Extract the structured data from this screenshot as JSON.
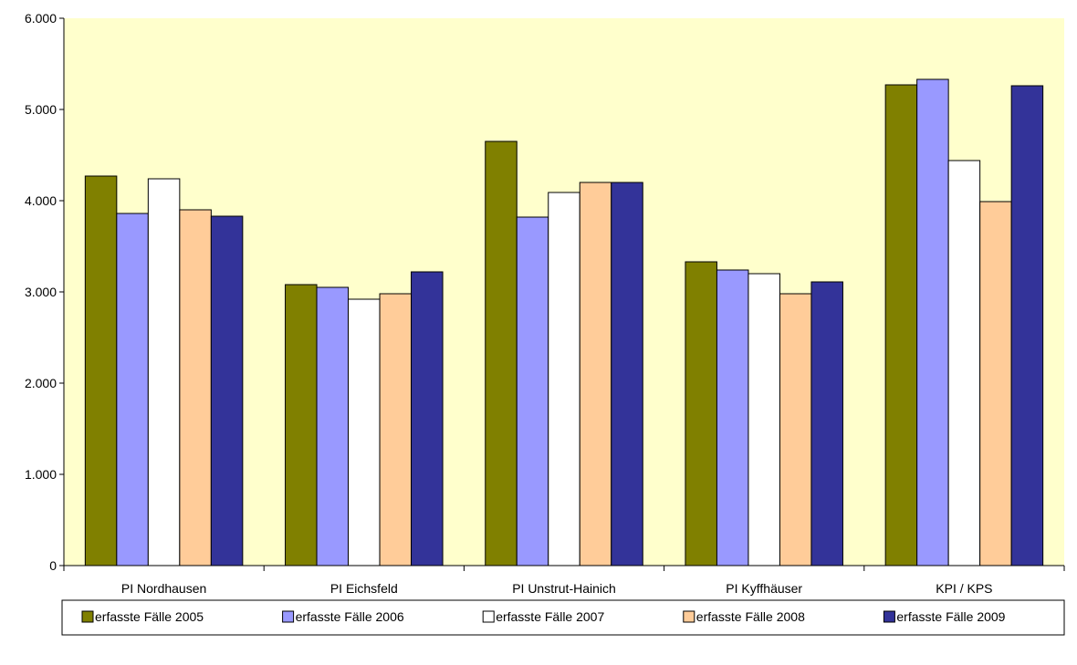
{
  "chart_data": {
    "type": "bar",
    "title": "",
    "xlabel": "",
    "ylabel": "",
    "categories": [
      "PI Nordhausen",
      "PI Eichsfeld",
      "PI Unstrut-Hainich",
      "PI Kyffhäuser",
      "KPI / KPS"
    ],
    "ylim": [
      0,
      6000
    ],
    "yticks": [
      0,
      1000,
      2000,
      3000,
      4000,
      5000,
      6000
    ],
    "ytick_labels": [
      "0",
      "1.000",
      "2.000",
      "3.000",
      "4.000",
      "5.000",
      "6.000"
    ],
    "grid": false,
    "legend_position": "bottom",
    "plot_background": "#FFFFCC",
    "series": [
      {
        "name": "erfasste Fälle 2005",
        "color": "#808000",
        "values": [
          4270,
          3080,
          4650,
          3330,
          5270
        ]
      },
      {
        "name": "erfasste Fälle 2006",
        "color": "#9999FF",
        "values": [
          3860,
          3050,
          3820,
          3240,
          5330
        ]
      },
      {
        "name": "erfasste Fälle 2007",
        "color": "#FFFFFF",
        "values": [
          4240,
          2920,
          4090,
          3200,
          4440
        ]
      },
      {
        "name": "erfasste Fälle 2008",
        "color": "#FFCC99",
        "values": [
          3900,
          2980,
          4200,
          2980,
          3990
        ]
      },
      {
        "name": "erfasste Fälle 2009",
        "color": "#333399",
        "values": [
          3830,
          3220,
          4200,
          3110,
          5260
        ]
      }
    ]
  }
}
